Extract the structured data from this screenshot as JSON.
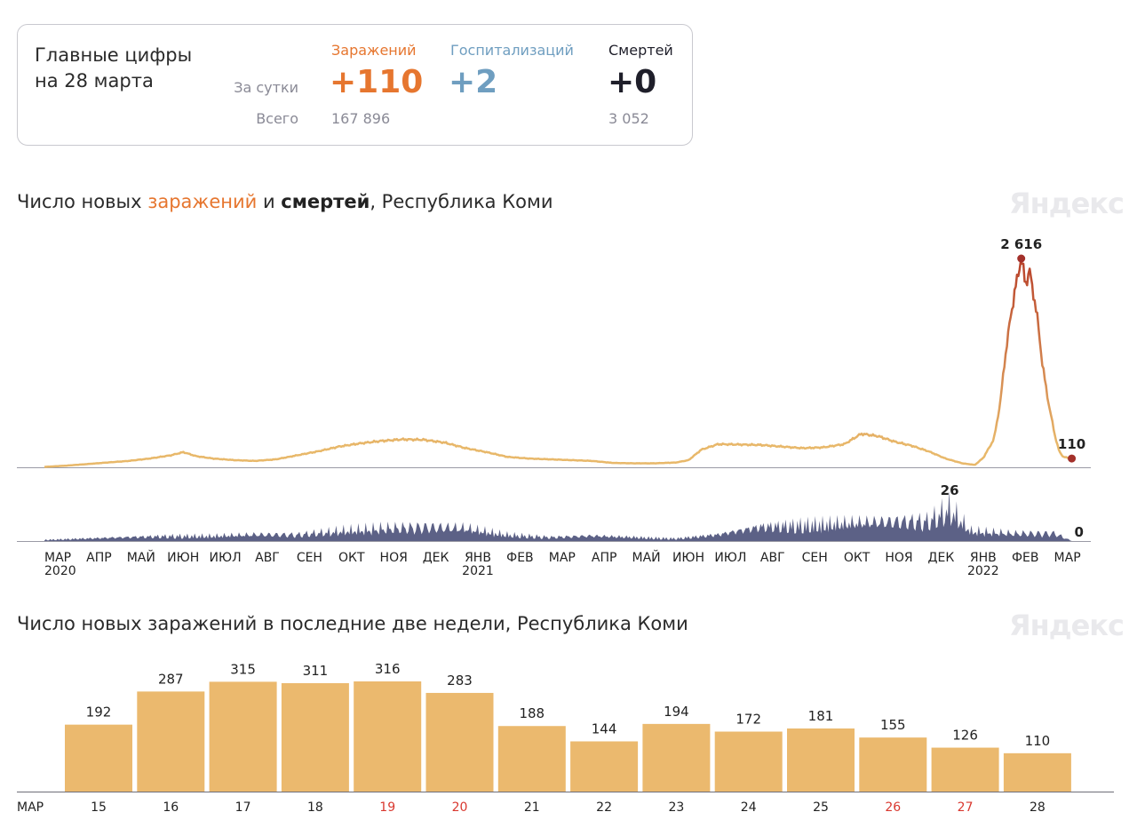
{
  "summary": {
    "title_line1": "Главные цифры",
    "title_line2": "на 28 марта",
    "row_daily": "За сутки",
    "row_total": "Всего",
    "columns": [
      {
        "label": "Заражений",
        "daily": "+110",
        "total": "167 896",
        "color": "#e6762f"
      },
      {
        "label": "Госпитализаций",
        "daily": "+2",
        "total": "",
        "color": "#6f9ec0"
      },
      {
        "label": "Смертей",
        "daily": "+0",
        "total": "3 052",
        "color": "#1f1f2a"
      }
    ]
  },
  "watermark": "Яндекс",
  "colors": {
    "infections": "#e8b86a",
    "infections_peak": "#b8412a",
    "deaths": "#5c6186",
    "bars": "#ebb96e",
    "weekend": "#d9382f"
  },
  "chart_data": [
    {
      "type": "line",
      "title_parts": [
        "Число новых ",
        "заражений",
        " и ",
        "смертей",
        ", Республика Коми"
      ],
      "x_ticks": [
        {
          "label": "МАР",
          "year": "2020"
        },
        {
          "label": "АПР"
        },
        {
          "label": "МАЙ"
        },
        {
          "label": "ИЮН"
        },
        {
          "label": "ИЮЛ"
        },
        {
          "label": "АВГ"
        },
        {
          "label": "СЕН"
        },
        {
          "label": "ОКТ"
        },
        {
          "label": "НОЯ"
        },
        {
          "label": "ДЕК"
        },
        {
          "label": "ЯНВ",
          "year": "2021"
        },
        {
          "label": "ФЕВ"
        },
        {
          "label": "МАР"
        },
        {
          "label": "АПР"
        },
        {
          "label": "МАЙ"
        },
        {
          "label": "ИЮН"
        },
        {
          "label": "ИЮЛ"
        },
        {
          "label": "АВГ"
        },
        {
          "label": "СЕН"
        },
        {
          "label": "ОКТ"
        },
        {
          "label": "НОЯ"
        },
        {
          "label": "ДЕК"
        },
        {
          "label": "ЯНВ",
          "year": "2022"
        },
        {
          "label": "ФЕВ"
        },
        {
          "label": "МАР"
        }
      ],
      "series": [
        {
          "name": "заражений",
          "month_index": [
            0,
            0.5,
            1,
            1.5,
            2,
            2.5,
            3,
            3.3,
            3.6,
            4,
            4.5,
            5,
            5.5,
            6,
            6.5,
            7,
            7.5,
            8,
            8.5,
            9,
            9.5,
            10,
            10.5,
            11,
            11.5,
            12,
            12.5,
            13,
            13.5,
            14,
            14.5,
            15,
            15.3,
            15.6,
            16,
            16.5,
            17,
            17.5,
            18,
            18.5,
            19,
            19.4,
            19.8,
            20.2,
            20.6,
            21,
            21.4,
            21.8,
            22.1,
            22.3,
            22.55,
            22.7,
            22.8,
            22.95,
            23.05,
            23.15,
            23.2,
            23.3,
            23.4,
            23.5,
            23.6,
            23.7,
            23.85,
            24.0,
            24.1,
            24.2,
            24.3,
            24.4
          ],
          "values": [
            5,
            20,
            40,
            60,
            80,
            110,
            150,
            190,
            140,
            110,
            90,
            80,
            100,
            150,
            200,
            260,
            300,
            330,
            350,
            345,
            310,
            240,
            190,
            130,
            110,
            100,
            90,
            80,
            55,
            50,
            50,
            60,
            90,
            220,
            290,
            285,
            280,
            260,
            240,
            250,
            290,
            420,
            390,
            320,
            270,
            200,
            110,
            50,
            30,
            120,
            350,
            800,
            1300,
            1900,
            2200,
            2500,
            2616,
            2300,
            2450,
            2150,
            1800,
            1300,
            800,
            400,
            200,
            130,
            120,
            110
          ],
          "peak_label": "2 616",
          "end_label": "110"
        },
        {
          "name": "смертей",
          "month_index": [
            0,
            1,
            2,
            3,
            4,
            5,
            6,
            7,
            8,
            9,
            10,
            11,
            12,
            13,
            14,
            15,
            16,
            17,
            18,
            19,
            20,
            21,
            21.5,
            22,
            23,
            24,
            24.4
          ],
          "values": [
            1,
            2,
            3,
            4,
            4,
            5,
            5,
            8,
            10,
            11,
            10,
            5,
            3,
            4,
            3,
            2,
            5,
            11,
            13,
            14,
            15,
            16,
            26,
            8,
            6,
            6,
            0
          ],
          "end_label": "0"
        }
      ]
    },
    {
      "type": "bar",
      "title": "Число новых заражений в последние две недели, Республика Коми",
      "month_label": "МАР",
      "categories": [
        "15",
        "16",
        "17",
        "18",
        "19",
        "20",
        "21",
        "22",
        "23",
        "24",
        "25",
        "26",
        "27",
        "28"
      ],
      "values": [
        192,
        287,
        315,
        311,
        316,
        283,
        188,
        144,
        194,
        172,
        181,
        155,
        126,
        110
      ],
      "weekend": [
        false,
        false,
        false,
        false,
        true,
        true,
        false,
        false,
        false,
        false,
        false,
        true,
        true,
        false
      ]
    }
  ]
}
